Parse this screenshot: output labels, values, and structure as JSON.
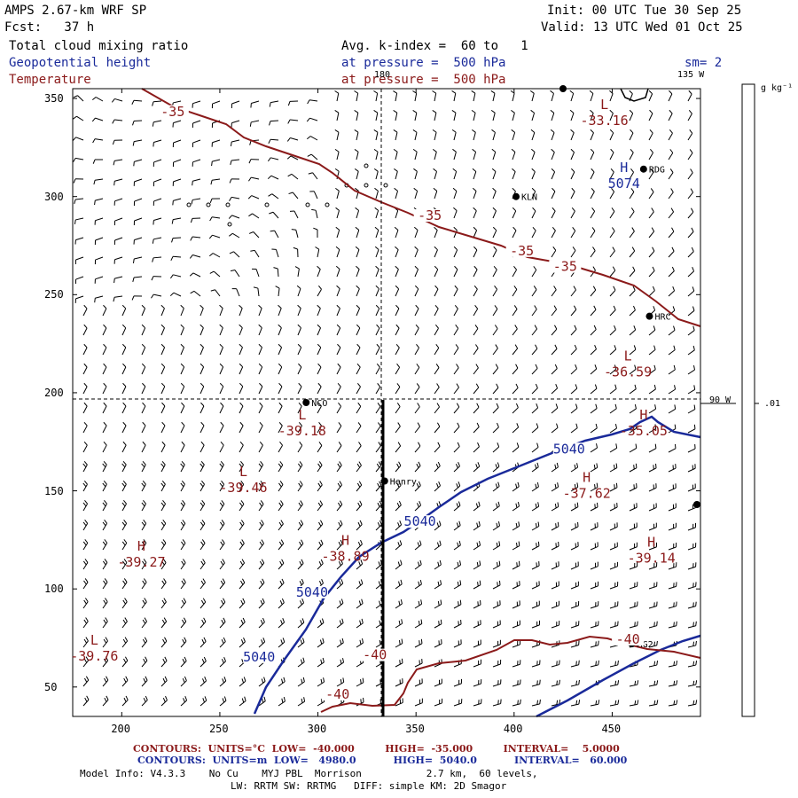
{
  "header": {
    "model": "AMPS 2.67-km WRF SP",
    "init": "Init: 00 UTC Tue 30 Sep 25",
    "fcst": "Fcst:   37 h",
    "valid": "Valid: 13 UTC Wed 01 Oct 25",
    "field1": "Total cloud mixing ratio",
    "field1_avg": "Avg. k-index =  60 to   1",
    "field2": "Geopotential height",
    "field2_level": "at pressure =  500 hPa",
    "field3": "Temperature",
    "field3_level": "at pressure =  500 hPa",
    "smoothing": "sm= 2",
    "lon135": "135 W",
    "lon180": "180",
    "lon90": "90 W"
  },
  "colorbar": {
    "unit": "g kg⁻¹",
    "value": ".01"
  },
  "axes": {
    "x_ticks": [
      "200",
      "250",
      "300",
      "350",
      "400",
      "450"
    ],
    "y_ticks": [
      "350",
      "300",
      "250",
      "200",
      "150",
      "100",
      "50"
    ],
    "xlim": [
      175,
      495
    ],
    "ylim": [
      35,
      355
    ]
  },
  "stations": [
    {
      "name": "KLN",
      "x": 401,
      "y": 300
    },
    {
      "name": "RDG",
      "x": 466,
      "y": 314
    },
    {
      "name": "HRC",
      "x": 469,
      "y": 239
    },
    {
      "name": "NCO",
      "x": 294,
      "y": 195
    },
    {
      "name": "Henry",
      "x": 334,
      "y": 155
    },
    {
      "name": "AG2",
      "x": 460,
      "y": 72
    }
  ],
  "extrema": [
    {
      "type": "L",
      "value": "-33.16",
      "x": 446,
      "y": 340,
      "color": "red"
    },
    {
      "type": "H",
      "value": "5074",
      "x": 456,
      "y": 308,
      "color": "blue"
    },
    {
      "type": "L",
      "value": "-36.59",
      "x": 458,
      "y": 212,
      "color": "red"
    },
    {
      "type": "L",
      "value": "-39.18",
      "x": 292,
      "y": 182,
      "color": "red"
    },
    {
      "type": "H",
      "value": "-35.05",
      "x": 466,
      "y": 182,
      "color": "red"
    },
    {
      "type": "H",
      "value": "-37.62",
      "x": 437,
      "y": 150,
      "color": "red"
    },
    {
      "type": "L",
      "value": "-39.46",
      "x": 262,
      "y": 153,
      "color": "red"
    },
    {
      "type": "H",
      "value": "-38.89",
      "x": 314,
      "y": 118,
      "color": "red"
    },
    {
      "type": "H",
      "value": "-39.14",
      "x": 470,
      "y": 117,
      "color": "red"
    },
    {
      "type": "H",
      "value": "-39.27",
      "x": 210,
      "y": 115,
      "color": "red"
    },
    {
      "type": "L",
      "value": "-39.76",
      "x": 186,
      "y": 67,
      "color": "red"
    }
  ],
  "contour_labels": [
    {
      "text": "-35",
      "x": 226,
      "y": 342,
      "color": "red"
    },
    {
      "text": "-35",
      "x": 357,
      "y": 289,
      "color": "red"
    },
    {
      "text": "-35",
      "x": 404,
      "y": 271,
      "color": "red"
    },
    {
      "text": "-35",
      "x": 426,
      "y": 263,
      "color": "red"
    },
    {
      "text": "5040",
      "x": 428,
      "y": 170,
      "color": "blue"
    },
    {
      "text": "5040",
      "x": 352,
      "y": 133,
      "color": "blue"
    },
    {
      "text": "5040",
      "x": 297,
      "y": 97,
      "color": "blue"
    },
    {
      "text": "5040",
      "x": 270,
      "y": 64,
      "color": "blue"
    },
    {
      "text": "-40",
      "x": 329,
      "y": 65,
      "color": "red"
    },
    {
      "text": "-40",
      "x": 458,
      "y": 73,
      "color": "red"
    },
    {
      "text": "-40",
      "x": 310,
      "y": 45,
      "color": "red"
    }
  ],
  "footer": {
    "contours_red": "CONTOURS:  UNITS=°C  LOW=  -40.000         HIGH=  -35.000         INTERVAL=    5.0000",
    "contours_blue": "CONTOURS:  UNITS=m  LOW=   4980.0           HIGH=  5040.0           INTERVAL=   60.000",
    "model_info": "Model Info: V4.3.3    No Cu    MYJ PBL  Morrison           2.7 km,  60 levels,",
    "model_info2": "LW: RRTM SW: RRTMG   DIFF: simple KM: 2D Smagor"
  },
  "colors": {
    "red": "#8b1a1a",
    "blue": "#1a2a9a",
    "black": "#000000"
  }
}
